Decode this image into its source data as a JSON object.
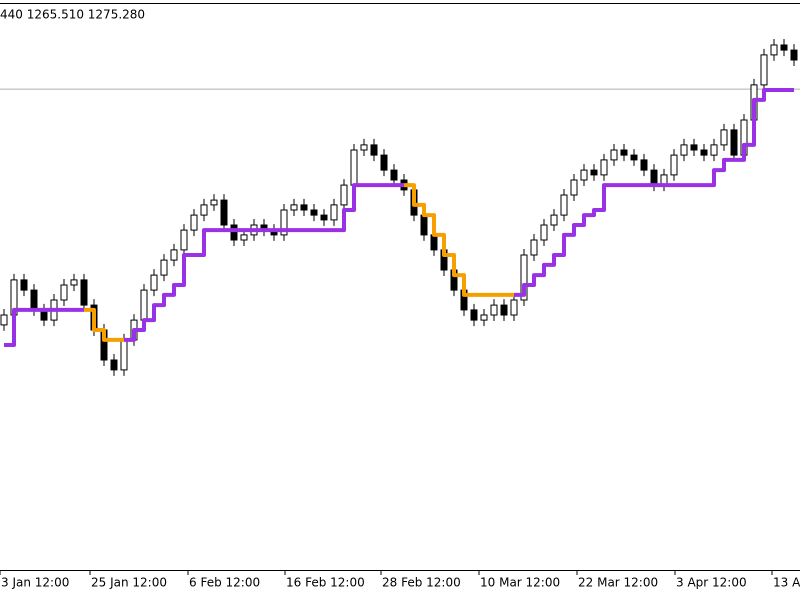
{
  "chart_data": {
    "type": "candlestick",
    "header": "440 1265.510 1275.280",
    "ylim": [
      1115,
      1305
    ],
    "bid_line": 1275.28,
    "bid_line_color": "#b0b0b0",
    "xlim": [
      -0.4,
      79.6
    ],
    "xticks": [
      {
        "value": -0.4,
        "label": "3 Jan 12:00"
      },
      {
        "value": 8.6,
        "label": "25 Jan 12:00"
      },
      {
        "value": 18.4,
        "label": "6 Feb 12:00"
      },
      {
        "value": 28.1,
        "label": "16 Feb 12:00"
      },
      {
        "value": 37.7,
        "label": "28 Feb 12:00"
      },
      {
        "value": 47.5,
        "label": "10 Mar 12:00"
      },
      {
        "value": 57.3,
        "label": "22 Mar 12:00"
      },
      {
        "value": 67.1,
        "label": "3 Apr 12:00"
      },
      {
        "value": 76.8,
        "label": "13 A"
      }
    ],
    "up_fill": "#ffffff",
    "down_fill": "#000000",
    "candle_color": "#000000",
    "open": [
      1196.7,
      1200.0,
      1211.7,
      1208.3,
      1201.7,
      1198.3,
      1205.0,
      1210.0,
      1211.7,
      1203.3,
      1195.0,
      1185.0,
      1181.7,
      1191.7,
      1198.3,
      1208.3,
      1213.3,
      1218.3,
      1221.7,
      1228.3,
      1233.3,
      1236.7,
      1238.3,
      1230.0,
      1225.0,
      1226.7,
      1230.0,
      1228.3,
      1226.7,
      1235.0,
      1236.7,
      1235.0,
      1233.3,
      1231.7,
      1236.7,
      1243.3,
      1255.0,
      1256.7,
      1253.3,
      1248.3,
      1245.0,
      1241.7,
      1233.3,
      1226.7,
      1221.7,
      1215.0,
      1208.3,
      1201.7,
      1198.3,
      1200.0,
      1203.3,
      1200.0,
      1205.0,
      1220.0,
      1225.0,
      1230.0,
      1233.3,
      1240.0,
      1245.0,
      1248.3,
      1246.7,
      1251.7,
      1255.0,
      1253.3,
      1251.7,
      1248.3,
      1243.3,
      1246.7,
      1253.3,
      1256.7,
      1255.0,
      1253.3,
      1256.7,
      1261.7,
      1253.3,
      1265.0,
      1276.7,
      1286.7,
      1290.0,
      1288.3
    ],
    "high": [
      1202.0,
      1213.7,
      1213.7,
      1210.3,
      1203.7,
      1207.0,
      1212.0,
      1213.7,
      1213.7,
      1205.3,
      1197.0,
      1187.0,
      1193.7,
      1200.3,
      1210.3,
      1215.3,
      1220.3,
      1223.7,
      1230.3,
      1235.3,
      1238.7,
      1240.3,
      1240.3,
      1232.0,
      1228.7,
      1232.0,
      1232.0,
      1230.3,
      1237.0,
      1238.7,
      1238.7,
      1237.0,
      1235.3,
      1238.7,
      1245.3,
      1257.0,
      1258.7,
      1258.7,
      1255.3,
      1250.3,
      1247.0,
      1243.7,
      1235.3,
      1228.7,
      1223.7,
      1217.0,
      1210.3,
      1203.7,
      1202.0,
      1205.3,
      1205.3,
      1207.0,
      1222.0,
      1227.0,
      1232.0,
      1235.3,
      1242.0,
      1247.0,
      1250.3,
      1250.3,
      1253.7,
      1257.0,
      1257.0,
      1255.3,
      1253.7,
      1250.3,
      1248.7,
      1255.3,
      1258.7,
      1258.7,
      1257.0,
      1258.7,
      1263.7,
      1263.7,
      1267.0,
      1278.7,
      1288.7,
      1292.0,
      1292.0,
      1290.3
    ],
    "low": [
      1194.7,
      1198.0,
      1206.3,
      1199.7,
      1196.3,
      1196.3,
      1203.0,
      1208.0,
      1201.3,
      1193.0,
      1183.0,
      1179.7,
      1179.7,
      1189.7,
      1196.3,
      1206.3,
      1211.3,
      1216.3,
      1219.7,
      1226.3,
      1231.3,
      1234.7,
      1228.0,
      1223.0,
      1223.0,
      1224.7,
      1226.3,
      1224.7,
      1224.7,
      1233.0,
      1233.0,
      1231.3,
      1229.7,
      1229.7,
      1234.7,
      1241.3,
      1253.0,
      1251.3,
      1246.3,
      1243.0,
      1239.7,
      1231.3,
      1224.7,
      1219.7,
      1213.0,
      1206.3,
      1199.7,
      1196.3,
      1196.3,
      1198.0,
      1198.0,
      1198.0,
      1203.0,
      1218.0,
      1223.0,
      1228.0,
      1231.3,
      1238.0,
      1243.0,
      1244.7,
      1244.7,
      1249.7,
      1251.3,
      1249.7,
      1246.3,
      1241.3,
      1241.3,
      1244.7,
      1251.3,
      1253.0,
      1251.3,
      1251.3,
      1254.7,
      1251.3,
      1251.3,
      1263.0,
      1274.7,
      1284.7,
      1286.3,
      1283.0
    ],
    "close": [
      1200.0,
      1211.7,
      1208.3,
      1201.7,
      1198.3,
      1205.0,
      1210.0,
      1211.7,
      1203.3,
      1195.0,
      1185.0,
      1181.7,
      1191.7,
      1198.3,
      1208.3,
      1213.3,
      1218.3,
      1221.7,
      1228.3,
      1233.3,
      1236.7,
      1238.3,
      1230.0,
      1225.0,
      1226.7,
      1230.0,
      1228.3,
      1226.7,
      1235.0,
      1236.7,
      1235.0,
      1233.3,
      1231.7,
      1236.7,
      1243.3,
      1255.0,
      1256.7,
      1253.3,
      1248.3,
      1245.0,
      1241.7,
      1233.3,
      1226.7,
      1221.7,
      1215.0,
      1208.3,
      1201.7,
      1198.3,
      1200.0,
      1203.3,
      1200.0,
      1205.0,
      1220.0,
      1225.0,
      1230.0,
      1233.3,
      1240.0,
      1245.0,
      1248.3,
      1246.7,
      1251.7,
      1255.0,
      1253.3,
      1251.7,
      1248.3,
      1243.3,
      1246.7,
      1253.3,
      1256.7,
      1255.0,
      1253.3,
      1256.7,
      1261.7,
      1253.3,
      1265.0,
      1276.7,
      1286.7,
      1290.0,
      1288.3,
      1285.0
    ],
    "lines": [
      {
        "color": "#9932e6",
        "values": [
          1190,
          1201.7,
          1201.7,
          1201.7,
          1201.7,
          1201.7,
          1201.7,
          1201.7,
          1201.7,
          null,
          null,
          null,
          1191.7,
          1195,
          1198.3,
          1203.3,
          1206.7,
          1210,
          1220,
          1220,
          1228.3,
          1228.3,
          1228.3,
          1228.3,
          1228.3,
          1228.3,
          1228.3,
          1228.3,
          1228.3,
          1228.3,
          1228.3,
          1228.3,
          1228.3,
          1228.3,
          1235,
          1243.3,
          1243.3,
          1243.3,
          1243.3,
          1243.3,
          1243.3,
          null,
          null,
          null,
          null,
          null,
          null,
          null,
          null,
          null,
          null,
          1206.7,
          1210,
          1213.3,
          1216.7,
          1220,
          1226.7,
          1230,
          1233.3,
          1235,
          1243.3,
          1243.3,
          1243.3,
          1243.3,
          1243.3,
          1243.3,
          1243.3,
          1243.3,
          1243.3,
          1243.3,
          1243.3,
          1248.3,
          1251.7,
          1251.7,
          1256.7,
          1271.7,
          1275,
          1275,
          1275,
          1275
        ]
      },
      {
        "color": "#f5a000",
        "values": [
          null,
          null,
          null,
          null,
          null,
          null,
          null,
          null,
          1201.7,
          1195,
          1191.7,
          1191.7,
          1191.7,
          null,
          null,
          null,
          null,
          null,
          null,
          null,
          null,
          null,
          null,
          null,
          null,
          null,
          null,
          null,
          null,
          null,
          null,
          null,
          null,
          null,
          null,
          null,
          null,
          null,
          null,
          null,
          1243.3,
          1236.7,
          1233.3,
          1226.7,
          1220,
          1213.3,
          1206.7,
          1206.7,
          1206.7,
          1206.7,
          1206.7,
          1206.7,
          null,
          null,
          null,
          null,
          null,
          null,
          null,
          null,
          null,
          null,
          null,
          null,
          null,
          null,
          null,
          null,
          null,
          null,
          null,
          null,
          null,
          null,
          null,
          null,
          null,
          null,
          null,
          null
        ]
      }
    ]
  }
}
